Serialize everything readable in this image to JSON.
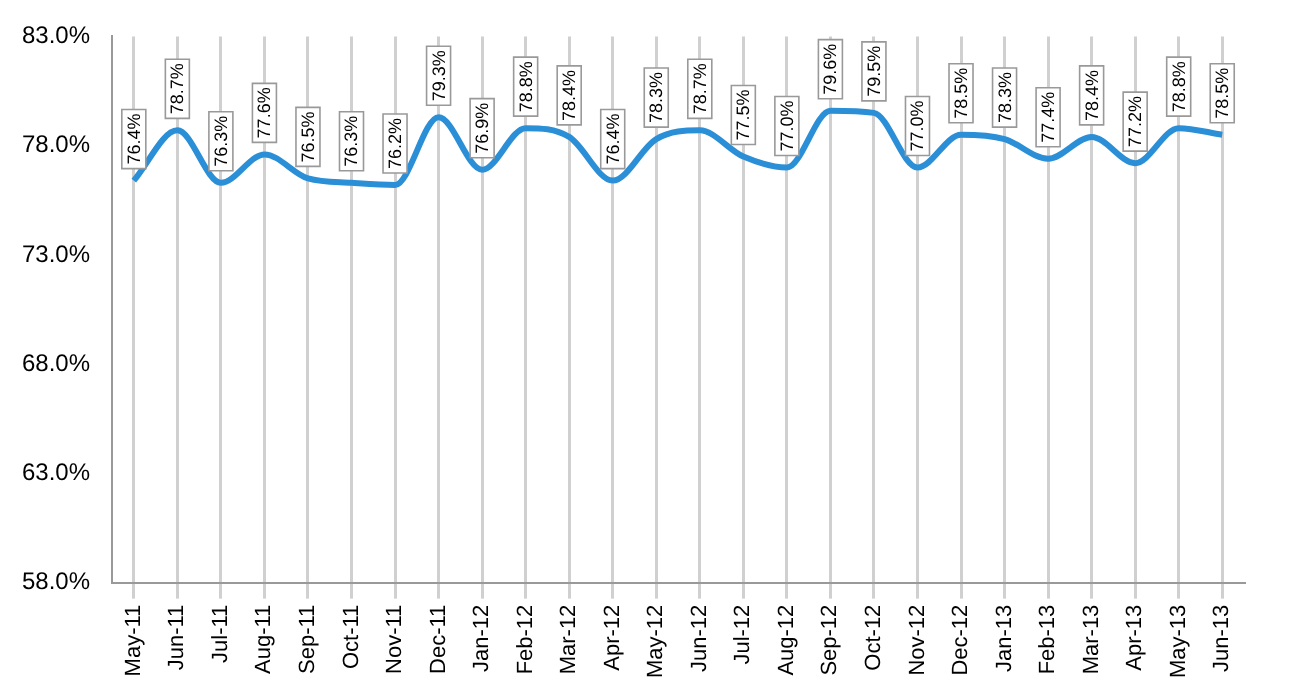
{
  "chart_data": {
    "type": "line",
    "categories": [
      "May-11",
      "Jun-11",
      "Jul-11",
      "Aug-11",
      "Sep-11",
      "Oct-11",
      "Nov-11",
      "Dec-11",
      "Jan-12",
      "Feb-12",
      "Mar-12",
      "Apr-12",
      "May-12",
      "Jun-12",
      "Jul-12",
      "Aug-12",
      "Sep-12",
      "Oct-12",
      "Nov-12",
      "Dec-12",
      "Jan-13",
      "Feb-13",
      "Mar-13",
      "Apr-13",
      "May-13",
      "Jun-13"
    ],
    "series": [
      {
        "color": "#2a8fd6",
        "values": [
          76.4,
          78.7,
          76.3,
          77.6,
          76.5,
          76.3,
          76.2,
          79.3,
          76.9,
          78.8,
          78.4,
          76.4,
          78.3,
          78.7,
          77.5,
          77.0,
          79.6,
          79.5,
          77.0,
          78.5,
          78.3,
          77.4,
          78.4,
          77.2,
          78.8,
          78.5
        ],
        "value_labels": [
          "76.4%",
          "78.7%",
          "76.3%",
          "77.6%",
          "76.5%",
          "76.3%",
          "76.2%",
          "79.3%",
          "76.9%",
          "78.8%",
          "78.4%",
          "76.4%",
          "78.3%",
          "78.7%",
          "77.5%",
          "77.0%",
          "79.6%",
          "79.5%",
          "77.0%",
          "78.5%",
          "78.3%",
          "77.4%",
          "78.4%",
          "77.2%",
          "78.8%",
          "78.5%"
        ]
      }
    ],
    "ylim": [
      58,
      83
    ],
    "yticks": [
      {
        "value": 58,
        "label": "58.0%"
      },
      {
        "value": 63,
        "label": "63.0%"
      },
      {
        "value": 68,
        "label": "68.0%"
      },
      {
        "value": 73,
        "label": "73.0%"
      },
      {
        "value": 78,
        "label": "78.0%"
      },
      {
        "value": 83,
        "label": "83.0%"
      }
    ],
    "grid": "x",
    "marker": "none",
    "line_style": "solid",
    "legend": false
  }
}
